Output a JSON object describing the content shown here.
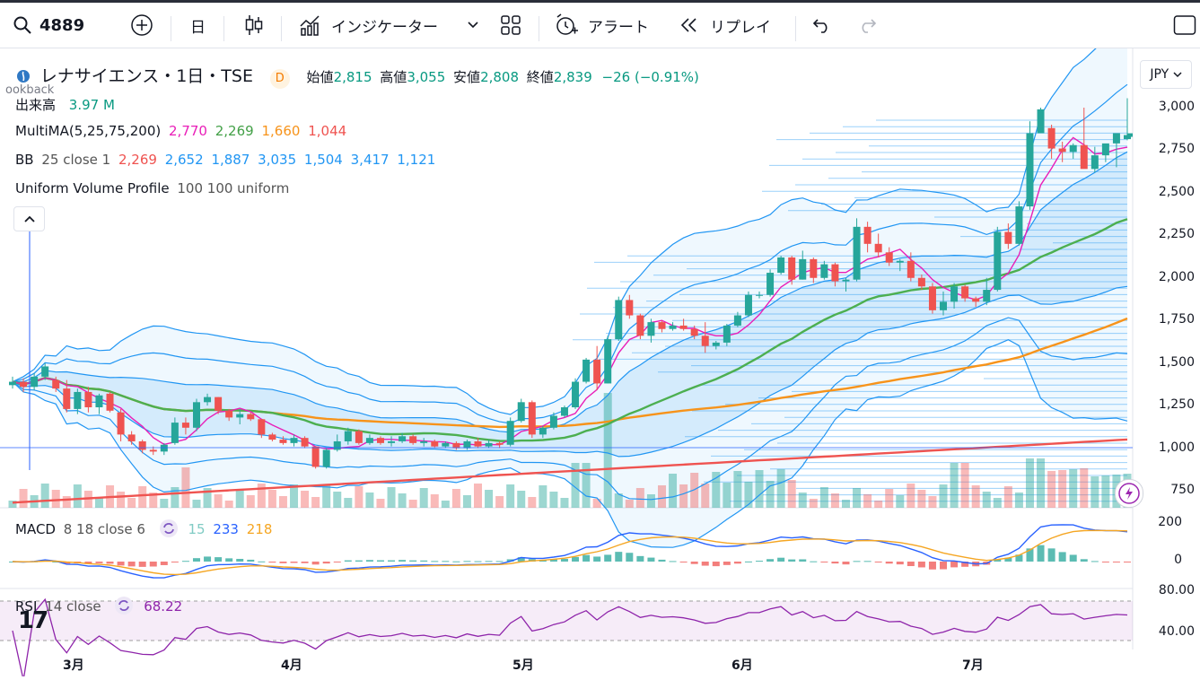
{
  "toolbar": {
    "symbol": "4889",
    "interval": "日",
    "indicators_label": "インジケーター",
    "alert_label": "アラート",
    "replay_label": "リプレイ"
  },
  "legend": {
    "title": "レナサイエンス・1日・TSE",
    "badge": "D",
    "open_label": "始値",
    "open": "2,815",
    "high_label": "高値",
    "high": "3,055",
    "low_label": "安値",
    "low": "2,808",
    "close_label": "終値",
    "close": "2,839",
    "change": "−26 (−0.91%)",
    "lookback": "ookback"
  },
  "indicators": {
    "volume": {
      "name": "出来高",
      "value": "3.97 M"
    },
    "multima": {
      "name": "MultiMA(5,25,75,200)",
      "v1": "2,770",
      "v2": "2,269",
      "v3": "1,660",
      "v4": "1,044"
    },
    "bb": {
      "name": "BB",
      "params": "25 close 1",
      "v1": "2,269",
      "v2": "2,652",
      "v3": "1,887",
      "v4": "3,035",
      "v5": "1,504",
      "v6": "3,417",
      "v7": "1,121"
    },
    "uvp": {
      "name": "Uniform Volume Profile",
      "params": "100 100 uniform"
    },
    "macd": {
      "name": "MACD",
      "params": "8 18 close 6",
      "v1": "15",
      "v2": "233",
      "v3": "218"
    },
    "rsi": {
      "name": "RSI",
      "params": "14 close",
      "value": "68.22"
    }
  },
  "currency": "JPY",
  "price_axis": [
    "3,000",
    "2,750",
    "2,500",
    "2,250",
    "2,000",
    "1,750",
    "1,500",
    "1,250",
    "1,000",
    "750"
  ],
  "macd_axis": [
    "200",
    "0"
  ],
  "rsi_axis": [
    "80.00",
    "40.00"
  ],
  "time_axis": [
    "3月",
    "4月",
    "5月",
    "6月",
    "7月"
  ],
  "colors": {
    "up": "#26a69a",
    "down": "#ef5350",
    "ma5": "#e91eb8",
    "ma25": "#4caf50",
    "ma75": "#f7931a",
    "ma200": "#ef5350",
    "bb": "#2196f3",
    "macd": "#2962ff",
    "signal": "#f5a623",
    "rsi": "#8e24aa"
  },
  "chart_data": {
    "type": "candlestick",
    "ylim": [
      750,
      3050
    ],
    "candles": [
      [
        1370,
        1420,
        1350,
        1390
      ],
      [
        1390,
        1410,
        1330,
        1360
      ],
      [
        1360,
        1440,
        1340,
        1420
      ],
      [
        1420,
        1500,
        1400,
        1480
      ],
      [
        1400,
        1420,
        1330,
        1350
      ],
      [
        1350,
        1400,
        1210,
        1230
      ],
      [
        1230,
        1350,
        1200,
        1330
      ],
      [
        1330,
        1360,
        1210,
        1240
      ],
      [
        1240,
        1320,
        1200,
        1310
      ],
      [
        1320,
        1330,
        1210,
        1220
      ],
      [
        1210,
        1230,
        1040,
        1080
      ],
      [
        1080,
        1100,
        1020,
        1040
      ],
      [
        1040,
        1050,
        970,
        990
      ],
      [
        990,
        1010,
        960,
        980
      ],
      [
        980,
        1030,
        960,
        1020
      ],
      [
        1030,
        1180,
        1020,
        1150
      ],
      [
        1150,
        1180,
        1080,
        1120
      ],
      [
        1120,
        1290,
        1100,
        1270
      ],
      [
        1270,
        1320,
        1250,
        1300
      ],
      [
        1300,
        1300,
        1200,
        1220
      ],
      [
        1220,
        1230,
        1160,
        1180
      ],
      [
        1180,
        1230,
        1140,
        1200
      ],
      [
        1200,
        1210,
        1160,
        1170
      ],
      [
        1170,
        1170,
        1060,
        1080
      ],
      [
        1080,
        1090,
        1040,
        1050
      ],
      [
        1050,
        1070,
        1020,
        1030
      ],
      [
        1030,
        1080,
        1010,
        1060
      ],
      [
        1060,
        1070,
        1000,
        1010
      ],
      [
        1010,
        1010,
        880,
        890
      ],
      [
        890,
        1000,
        880,
        990
      ],
      [
        990,
        1080,
        980,
        1040
      ],
      [
        1040,
        1120,
        1020,
        1100
      ],
      [
        1100,
        1110,
        1020,
        1030
      ],
      [
        1030,
        1080,
        1020,
        1060
      ],
      [
        1060,
        1070,
        1020,
        1030
      ],
      [
        1030,
        1070,
        1010,
        1040
      ],
      [
        1040,
        1090,
        1030,
        1070
      ],
      [
        1070,
        1080,
        1020,
        1030
      ],
      [
        1030,
        1060,
        1010,
        1040
      ],
      [
        1040,
        1050,
        1000,
        1010
      ],
      [
        1010,
        1040,
        1000,
        1030
      ],
      [
        1030,
        1040,
        990,
        1000
      ],
      [
        1000,
        1050,
        990,
        1040
      ],
      [
        1040,
        1060,
        1000,
        1010
      ],
      [
        1010,
        1050,
        1000,
        1030
      ],
      [
        1030,
        1040,
        1000,
        1020
      ],
      [
        1020,
        1180,
        1010,
        1160
      ],
      [
        1160,
        1290,
        1150,
        1270
      ],
      [
        1270,
        1280,
        1060,
        1080
      ],
      [
        1080,
        1130,
        1060,
        1120
      ],
      [
        1120,
        1210,
        1110,
        1190
      ],
      [
        1190,
        1250,
        1180,
        1240
      ],
      [
        1240,
        1410,
        1230,
        1390
      ],
      [
        1390,
        1530,
        1380,
        1520
      ],
      [
        1520,
        1600,
        1340,
        1380
      ],
      [
        1380,
        1660,
        1380,
        1640
      ],
      [
        1640,
        1890,
        1630,
        1870
      ],
      [
        1870,
        1900,
        1760,
        1780
      ],
      [
        1780,
        1790,
        1640,
        1660
      ],
      [
        1660,
        1760,
        1620,
        1740
      ],
      [
        1740,
        1750,
        1680,
        1700
      ],
      [
        1700,
        1740,
        1690,
        1720
      ],
      [
        1720,
        1760,
        1690,
        1700
      ],
      [
        1700,
        1720,
        1640,
        1660
      ],
      [
        1660,
        1740,
        1560,
        1600
      ],
      [
        1600,
        1630,
        1580,
        1620
      ],
      [
        1620,
        1730,
        1600,
        1720
      ],
      [
        1720,
        1800,
        1710,
        1780
      ],
      [
        1780,
        1920,
        1770,
        1900
      ],
      [
        1900,
        1920,
        1880,
        1900
      ],
      [
        1900,
        2050,
        1890,
        2030
      ],
      [
        2030,
        2130,
        2020,
        2120
      ],
      [
        2120,
        2130,
        1960,
        1990
      ],
      [
        1990,
        2160,
        1990,
        2110
      ],
      [
        2110,
        2120,
        1970,
        2000
      ],
      [
        2000,
        2100,
        1990,
        2080
      ],
      [
        2080,
        2090,
        1950,
        1980
      ],
      [
        1980,
        2000,
        1920,
        1990
      ],
      [
        1990,
        2350,
        1980,
        2300
      ],
      [
        2300,
        2330,
        2150,
        2200
      ],
      [
        2200,
        2260,
        2120,
        2150
      ],
      [
        2150,
        2180,
        2070,
        2090
      ],
      [
        2090,
        2110,
        2040,
        2100
      ],
      [
        2100,
        2150,
        1980,
        2000
      ],
      [
        2000,
        2020,
        1930,
        1950
      ],
      [
        1950,
        1970,
        1790,
        1810
      ],
      [
        1810,
        1920,
        1780,
        1860
      ],
      [
        1860,
        1970,
        1820,
        1950
      ],
      [
        1950,
        1960,
        1860,
        1880
      ],
      [
        1880,
        1890,
        1830,
        1860
      ],
      [
        1860,
        2000,
        1840,
        1930
      ],
      [
        1930,
        2300,
        1920,
        2270
      ],
      [
        2270,
        2320,
        2170,
        2200
      ],
      [
        2200,
        2450,
        2190,
        2420
      ],
      [
        2420,
        2920,
        2400,
        2850
      ],
      [
        2850,
        3000,
        2860,
        2990
      ],
      [
        2880,
        2900,
        2700,
        2760
      ],
      [
        2760,
        2800,
        2680,
        2740
      ],
      [
        2740,
        2790,
        2700,
        2780
      ],
      [
        2780,
        3000,
        2650,
        2640
      ],
      [
        2640,
        2770,
        2620,
        2720
      ],
      [
        2720,
        2780,
        2680,
        2790
      ],
      [
        2790,
        2840,
        2650,
        2850
      ],
      [
        2815,
        3055,
        2808,
        2839
      ]
    ]
  }
}
